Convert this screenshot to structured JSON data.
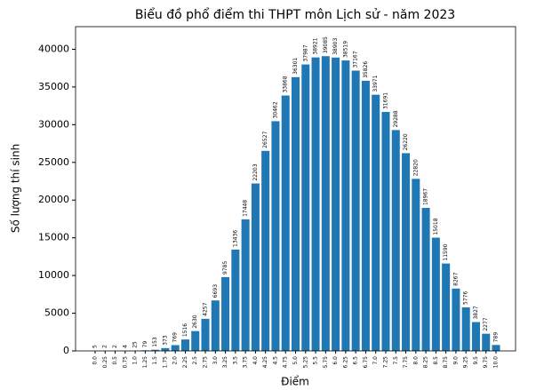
{
  "chart_data": {
    "type": "bar",
    "title": "Biểu đồ phổ điểm thi THPT môn Lịch sử - năm 2023",
    "xlabel": "Điểm",
    "ylabel": "Số lượng thí sinh",
    "categories": [
      "0.0",
      "0.25",
      "0.5",
      "0.75",
      "1.0",
      "1.25",
      "1.5",
      "1.75",
      "2.0",
      "2.25",
      "2.5",
      "2.75",
      "3.0",
      "3.25",
      "3.5",
      "3.75",
      "4.0",
      "4.25",
      "4.5",
      "4.75",
      "5.0",
      "5.25",
      "5.5",
      "5.75",
      "6.0",
      "6.25",
      "6.5",
      "6.75",
      "7.0",
      "7.25",
      "7.5",
      "7.75",
      "8.0",
      "8.25",
      "8.5",
      "8.75",
      "9.0",
      "9.25",
      "9.5",
      "9.75",
      "10.0"
    ],
    "values": [
      5,
      2,
      2,
      4,
      25,
      79,
      153,
      373,
      769,
      1516,
      2630,
      4257,
      6693,
      9785,
      13436,
      17448,
      22203,
      26527,
      30462,
      33868,
      36301,
      37987,
      38921,
      39085,
      38903,
      38519,
      37167,
      35826,
      33971,
      31691,
      29288,
      26220,
      22820,
      18967,
      15018,
      11590,
      8267,
      5776,
      3827,
      2277,
      789
    ],
    "color": "#1f77b4",
    "ylim": [
      0,
      43000
    ],
    "yticks": [
      0,
      5000,
      10000,
      15000,
      20000,
      25000,
      30000,
      35000,
      40000
    ]
  }
}
